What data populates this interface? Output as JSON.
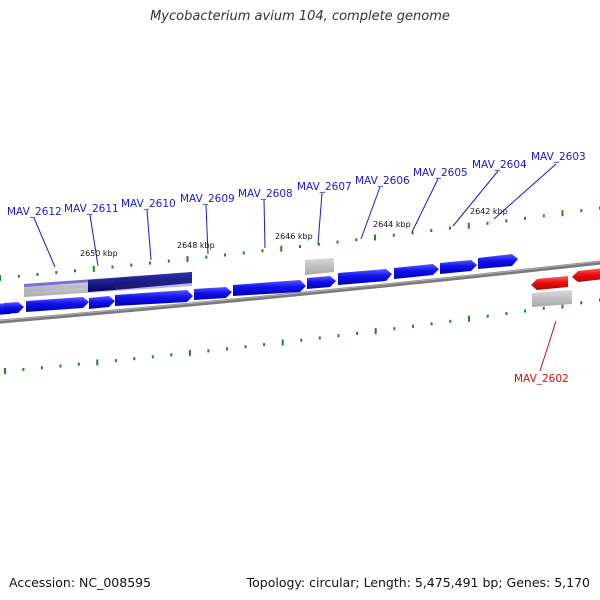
{
  "title": "Mycobacterium avium 104, complete genome",
  "footer": {
    "accession": "Accession: NC_008595",
    "info": "Topology: circular; Length: 5,475,491 bp; Genes: 5,170"
  },
  "colors": {
    "forward_gene": "#1010ee",
    "reverse_gene": "#ee1111",
    "selected_gene": "#00007a",
    "highlight_band": "#6a6ad0",
    "backbone": "#808080",
    "tick": "#1a8a1a",
    "label_forward": "#1a1ac8",
    "label_reverse": "#d01010",
    "pseudo_gene": "#b8b8b8"
  },
  "kbp_labels": [
    "2650 kbp",
    "2648 kbp",
    "2646 kbp",
    "2644 kbp",
    "2642 kbp"
  ],
  "gene_labels": [
    {
      "text": "MAV_2612",
      "strand": "forward"
    },
    {
      "text": "MAV_2611",
      "strand": "forward"
    },
    {
      "text": "MAV_2610",
      "strand": "forward"
    },
    {
      "text": "MAV_2609",
      "strand": "forward"
    },
    {
      "text": "MAV_2608",
      "strand": "forward"
    },
    {
      "text": "MAV_2607",
      "strand": "forward"
    },
    {
      "text": "MAV_2606",
      "strand": "forward"
    },
    {
      "text": "MAV_2605",
      "strand": "forward"
    },
    {
      "text": "MAV_2604",
      "strand": "forward"
    },
    {
      "text": "MAV_2603",
      "strand": "forward"
    },
    {
      "text": "MAV_2602",
      "strand": "reverse"
    }
  ]
}
